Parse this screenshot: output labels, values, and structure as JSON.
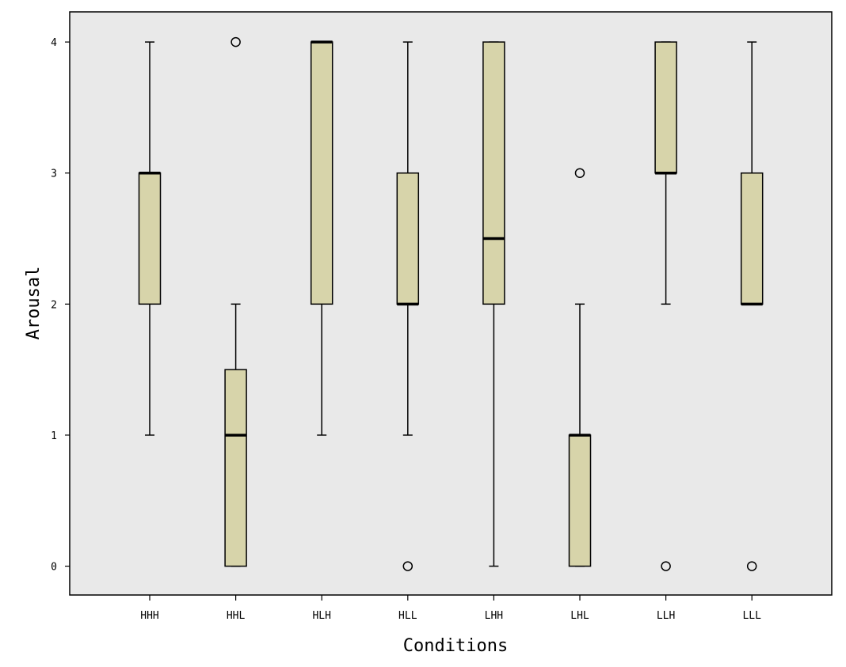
{
  "chart_data": {
    "type": "boxplot",
    "title": "",
    "xlabel": "Conditions",
    "ylabel": "Arousal",
    "ylim": [
      -0.22,
      4.23
    ],
    "yticks": [
      0,
      1,
      2,
      3,
      4
    ],
    "ytick_labels": [
      "0",
      "1",
      "2",
      "3",
      "4"
    ],
    "categories": [
      "HHH",
      "HHL",
      "HLH",
      "HLL",
      "LHH",
      "LHL",
      "LLH",
      "LLL"
    ],
    "boxes": [
      {
        "category": "HHH",
        "whisker_low": 1,
        "q1": 2,
        "median": 3,
        "q3": 3,
        "whisker_high": 4,
        "outliers": []
      },
      {
        "category": "HHL",
        "whisker_low": 0,
        "q1": 0,
        "median": 1,
        "q3": 1.5,
        "whisker_high": 2,
        "outliers": [
          4
        ]
      },
      {
        "category": "HLH",
        "whisker_low": 1,
        "q1": 2,
        "median": 4,
        "q3": 4,
        "whisker_high": 4,
        "outliers": []
      },
      {
        "category": "HLL",
        "whisker_low": 1,
        "q1": 2,
        "median": 2,
        "q3": 3,
        "whisker_high": 4,
        "outliers": [
          0
        ]
      },
      {
        "category": "LHH",
        "whisker_low": 0,
        "q1": 2,
        "median": 2.5,
        "q3": 4,
        "whisker_high": 4,
        "outliers": []
      },
      {
        "category": "LHL",
        "whisker_low": 0,
        "q1": 0,
        "median": 1,
        "q3": 1,
        "whisker_high": 2,
        "outliers": [
          3
        ]
      },
      {
        "category": "LLH",
        "whisker_low": 2,
        "q1": 3,
        "median": 3,
        "q3": 4,
        "whisker_high": 4,
        "outliers": [
          0
        ]
      },
      {
        "category": "LLL",
        "whisker_low": 2,
        "q1": 2,
        "median": 2,
        "q3": 3,
        "whisker_high": 4,
        "outliers": [
          0
        ]
      }
    ],
    "grid": false,
    "legend": "none",
    "colors": {
      "plot_background": "#e9e9e9",
      "box_fill": "#d7d4aa",
      "stroke": "#000000"
    }
  }
}
